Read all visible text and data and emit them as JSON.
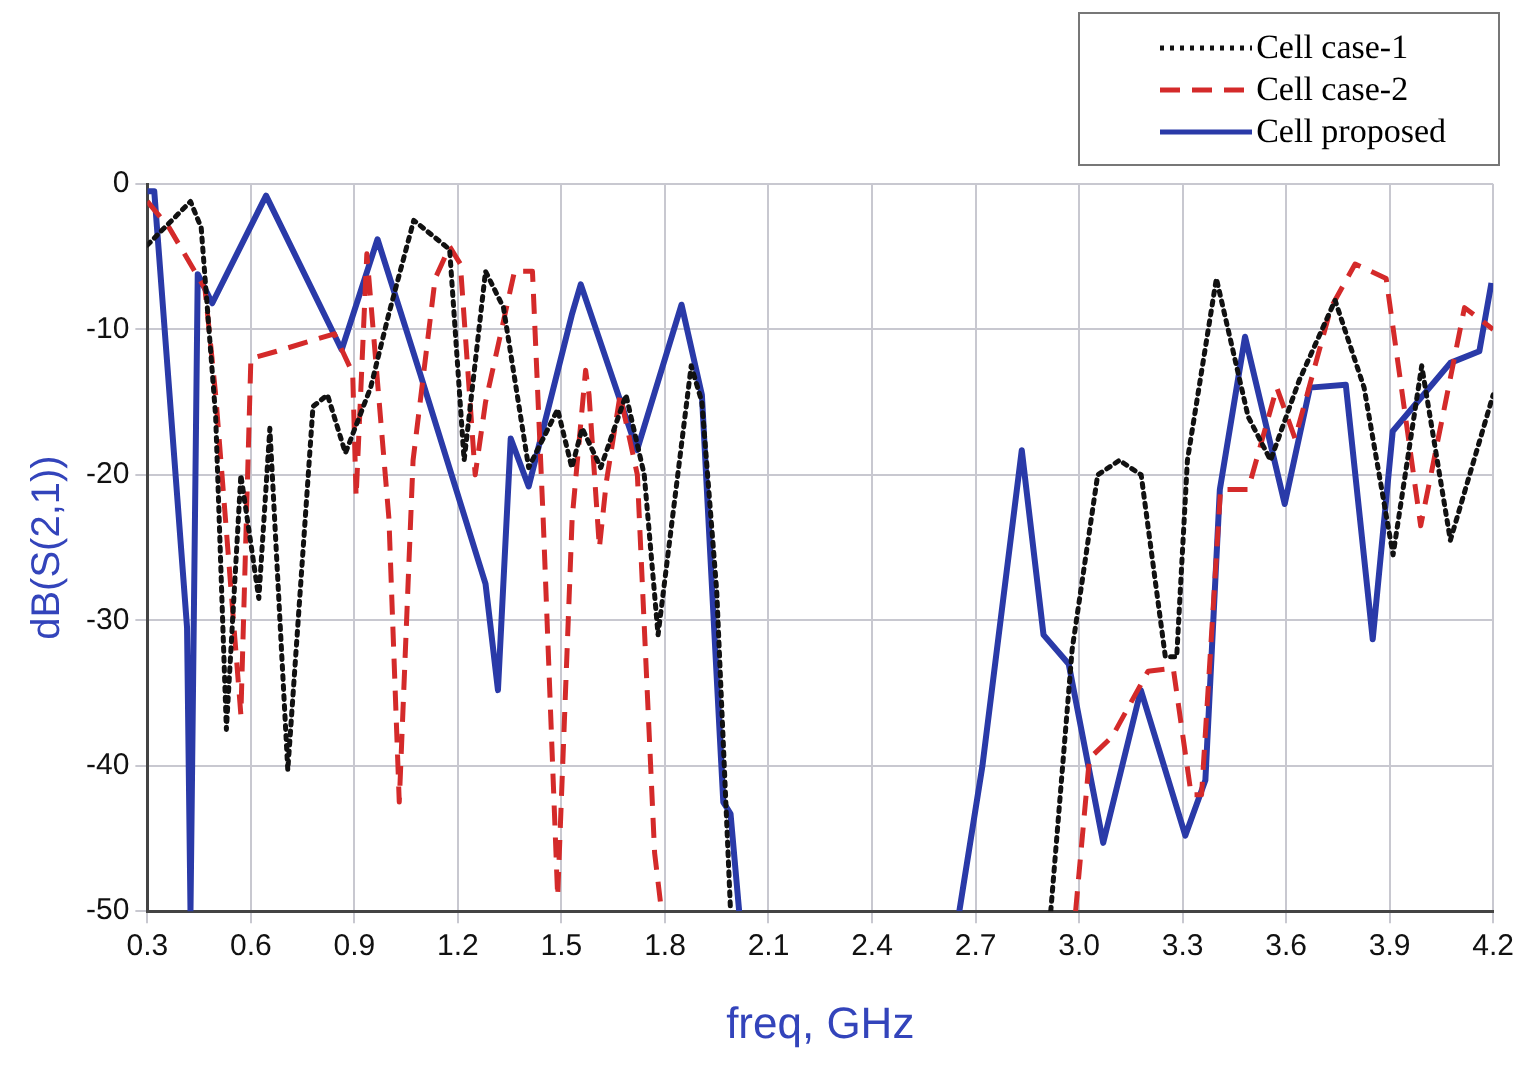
{
  "chart_data": {
    "type": "line",
    "xlabel": "freq, GHz",
    "ylabel": "dB(S(2,1))",
    "xlim": [
      0.3,
      4.2
    ],
    "ylim": [
      -50,
      0
    ],
    "xticks": [
      0.3,
      0.6,
      0.9,
      1.2,
      1.5,
      1.8,
      2.1,
      2.4,
      2.7,
      {
        "value": 3,
        "label": "3.0"
      },
      3.3,
      3.6,
      3.9,
      4.2
    ],
    "yticks": [
      -50,
      -40,
      -30,
      -20,
      -10,
      0
    ],
    "grid": true,
    "legend": "top right",
    "marker": "none",
    "series": [
      {
        "name": "Cell case-1",
        "color": "#111111",
        "line_style": "dotted",
        "x": [
          0.3,
          0.425,
          0.456,
          0.498,
          0.529,
          0.571,
          0.623,
          0.655,
          0.707,
          0.78,
          0.822,
          0.874,
          0.947,
          0.999,
          1.072,
          1.176,
          1.218,
          1.28,
          1.332,
          1.405,
          1.489,
          1.53,
          1.56,
          1.614,
          1.687,
          1.74,
          1.78,
          1.876,
          1.907,
          1.95,
          1.99,
          2.4,
          2.918,
          2.98,
          3.054,
          3.117,
          3.18,
          3.25,
          3.283,
          3.314,
          3.398,
          3.49,
          3.555,
          3.638,
          3.742,
          3.826,
          3.91,
          3.993,
          4.076,
          4.2
        ],
        "values": [
          -4.2,
          -1.2,
          -3,
          -16,
          -37.5,
          -20,
          -28.5,
          -16.8,
          -40.3,
          -15.3,
          -14.5,
          -18.5,
          -14,
          -9,
          -2.5,
          -4.5,
          -19,
          -6,
          -8.5,
          -19.5,
          -15.5,
          -19.5,
          -16.8,
          -19.5,
          -14.5,
          -20,
          -31,
          -12.5,
          -15,
          -28,
          -50,
          null,
          -50,
          -32,
          -20,
          -19,
          -20,
          -32.5,
          -32.5,
          -19,
          -6.5,
          -16,
          -19,
          -13.5,
          -8,
          -14,
          -25.5,
          -12.5,
          -24.5,
          -14.5
        ]
      },
      {
        "name": "Cell case-2",
        "color": "#d42a2a",
        "line_style": "dashed",
        "x": [
          0.3,
          0.363,
          0.467,
          0.498,
          0.571,
          0.6,
          0.675,
          0.842,
          0.895,
          0.905,
          0.936,
          1.0,
          1.03,
          1.07,
          1.134,
          1.176,
          1.207,
          1.25,
          1.28,
          1.364,
          1.416,
          1.447,
          1.489,
          1.531,
          1.57,
          1.58,
          1.61,
          1.63,
          1.67,
          1.72,
          1.77,
          1.79,
          2.4,
          2.99,
          3.03,
          3.096,
          3.2,
          3.273,
          3.325,
          3.355,
          3.41,
          3.49,
          3.573,
          3.626,
          3.73,
          3.8,
          3.89,
          3.99,
          4.117,
          4.2
        ],
        "values": [
          -1.2,
          -3,
          -7.2,
          -14.5,
          -36.5,
          -12,
          -11.5,
          -10.3,
          -13,
          -21.5,
          -4.8,
          -23,
          -42.5,
          -19,
          -6.5,
          -4.3,
          -5.5,
          -20,
          -15,
          -6,
          -6,
          -23,
          -49,
          -23,
          -12.8,
          -14.5,
          -25,
          -20.5,
          -14.5,
          -20,
          -46,
          -50,
          null,
          -50,
          -39.5,
          -38,
          -33.5,
          -33.3,
          -42,
          -42,
          -21,
          -21,
          -14,
          -17.5,
          -8.5,
          -5.5,
          -6.5,
          -23.5,
          -8.5,
          -10
        ]
      },
      {
        "name": "Cell proposed",
        "color": "#2a3aa8",
        "line_style": "solid",
        "x": [
          0.3,
          0.32,
          0.415,
          0.425,
          0.446,
          0.488,
          0.644,
          0.863,
          0.967,
          1.09,
          1.28,
          1.316,
          1.353,
          1.405,
          1.53,
          1.556,
          1.719,
          1.848,
          1.907,
          1.969,
          1.99,
          2.015,
          2.4,
          2.653,
          2.72,
          2.834,
          2.897,
          2.97,
          3.07,
          3.179,
          3.308,
          3.366,
          3.408,
          3.481,
          3.596,
          3.669,
          3.773,
          3.851,
          3.909,
          4.076,
          4.16,
          4.195
        ],
        "values": [
          -0.5,
          -0.5,
          -30.5,
          -50,
          -6.2,
          -8.2,
          -0.8,
          -11.4,
          -3.8,
          -13,
          -27.5,
          -34.8,
          -17.5,
          -20.8,
          -9,
          -6.9,
          -18.3,
          -8.3,
          -14.5,
          -42.5,
          -43.3,
          -50,
          null,
          -50,
          -40,
          -18.3,
          -31,
          -33,
          -45.3,
          -34.8,
          -44.8,
          -41,
          -21,
          -10.5,
          -22,
          -14,
          -13.8,
          -31.3,
          -17,
          -12.3,
          -11.5,
          -6.8
        ]
      }
    ]
  }
}
